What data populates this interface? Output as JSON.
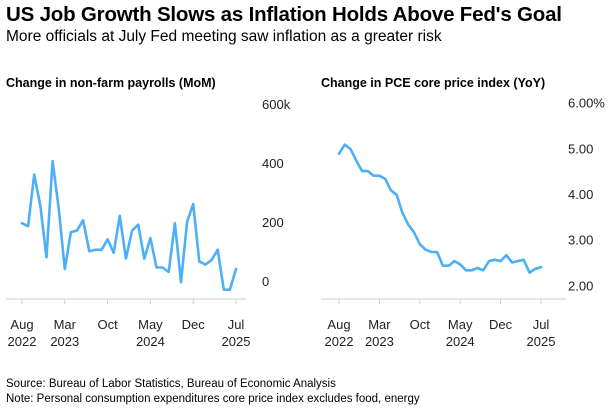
{
  "title": "US Job Growth Slows as Inflation Holds Above Fed's Goal",
  "subtitle": "More officials at July Fed meeting saw inflation as a greater risk",
  "footer": {
    "source": "Source: Bureau of Labor Statistics, Bureau of Economic Analysis",
    "note": "Note: Personal consumption expenditures core price index excludes food, energy"
  },
  "colors": {
    "line": "#4daff5",
    "axis": "#cfcfcf",
    "text": "#222222"
  },
  "chart_data": [
    {
      "type": "line",
      "title": "Change in non-farm payrolls (MoM)",
      "y_ticks": [
        "0",
        "200",
        "400",
        "600k"
      ],
      "y_tick_values": [
        0,
        200,
        400,
        600
      ],
      "ylim": [
        -30,
        620
      ],
      "x_ticks": [
        {
          "label": [
            "Aug",
            "2022"
          ],
          "date": "2022-08"
        },
        {
          "label": [
            "Mar",
            "2023"
          ],
          "date": "2023-03"
        },
        {
          "label": [
            "Oct",
            ""
          ],
          "date": "2023-10"
        },
        {
          "label": [
            "May",
            "2024"
          ],
          "date": "2024-05"
        },
        {
          "label": [
            "Dec",
            ""
          ],
          "date": "2024-12"
        },
        {
          "label": [
            "Jul",
            "2025"
          ],
          "date": "2025-07"
        }
      ],
      "grid": false,
      "series": [
        {
          "start": "2022-08",
          "values": [
            230,
            220,
            395,
            290,
            115,
            440,
            280,
            75,
            200,
            205,
            240,
            135,
            140,
            140,
            175,
            130,
            255,
            110,
            205,
            225,
            110,
            180,
            80,
            80,
            65,
            230,
            30,
            235,
            295,
            100,
            90,
            105,
            140,
            5,
            5,
            75
          ]
        }
      ]
    },
    {
      "type": "line",
      "title": "Change in PCE core price index (YoY)",
      "y_ticks": [
        "2.00",
        "3.00",
        "4.00",
        "5.00",
        "6.00%"
      ],
      "y_tick_values": [
        2,
        3,
        4,
        5,
        6
      ],
      "ylim": [
        1.9,
        6.1
      ],
      "x_ticks": [
        {
          "label": [
            "Aug",
            "2022"
          ],
          "date": "2022-08"
        },
        {
          "label": [
            "Mar",
            "2023"
          ],
          "date": "2023-03"
        },
        {
          "label": [
            "Oct",
            ""
          ],
          "date": "2023-10"
        },
        {
          "label": [
            "May",
            "2024"
          ],
          "date": "2024-05"
        },
        {
          "label": [
            "Dec",
            ""
          ],
          "date": "2024-12"
        },
        {
          "label": [
            "Jul",
            "2025"
          ],
          "date": "2025-07"
        }
      ],
      "grid": false,
      "series": [
        {
          "start": "2022-08",
          "values": [
            5.1,
            5.3,
            5.2,
            4.95,
            4.72,
            4.72,
            4.62,
            4.62,
            4.55,
            4.3,
            4.2,
            3.8,
            3.55,
            3.38,
            3.12,
            3.0,
            2.95,
            2.95,
            2.65,
            2.65,
            2.75,
            2.68,
            2.55,
            2.55,
            2.6,
            2.55,
            2.75,
            2.78,
            2.75,
            2.88,
            2.72,
            2.75,
            2.78,
            2.5,
            2.58,
            2.62
          ]
        }
      ]
    }
  ]
}
